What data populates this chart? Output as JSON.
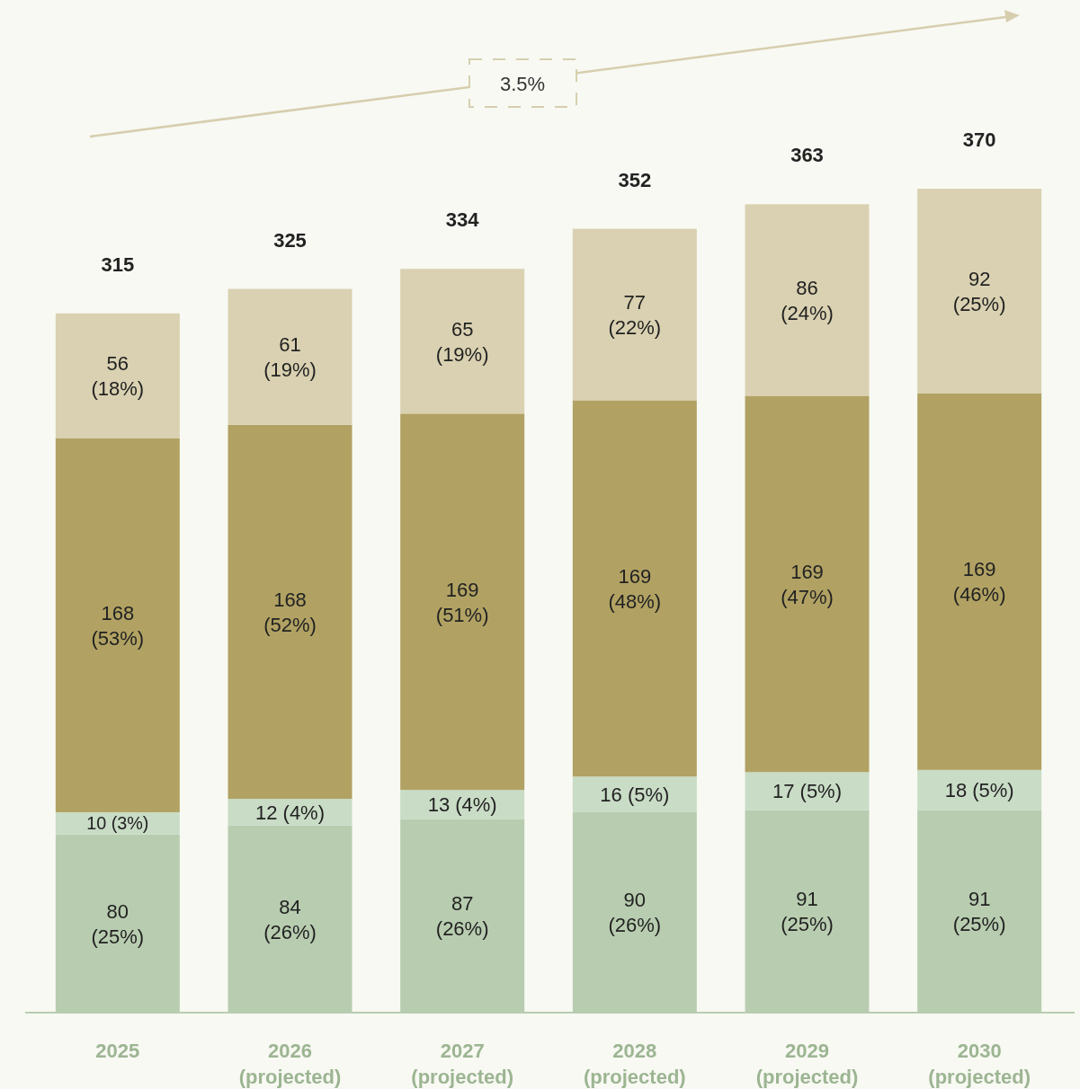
{
  "chart_data": {
    "type": "bar",
    "stacked": true,
    "tick_labels": "x",
    "categories": [
      "2025",
      "2026\n(projected)",
      "2027\n(projected)",
      "2028\n(projected)",
      "2029\n(projected)",
      "2030\n(projected)"
    ],
    "series": [
      {
        "color": "#b8cdb0",
        "values": [
          80,
          84,
          87,
          90,
          91,
          91
        ],
        "value_labels": [
          "80\n(25%)",
          "84\n(26%)",
          "87\n(26%)",
          "90\n(26%)",
          "91\n(25%)",
          "91\n(25%)"
        ]
      },
      {
        "color": "#c9dcc6",
        "values": [
          10,
          12,
          13,
          16,
          17,
          18
        ],
        "value_labels": [
          "10\n(3%)",
          "12\n(4%)",
          "13\n(4%)",
          "16\n(5%)",
          "17\n(5%)",
          "18\n(5%)"
        ]
      },
      {
        "color": "#b1a263",
        "values": [
          168,
          168,
          169,
          169,
          169,
          169
        ],
        "value_labels": [
          "168\n(53%)",
          "168\n(52%)",
          "169\n(51%)",
          "169\n(48%)",
          "169\n(47%)",
          "169\n(46%)"
        ]
      },
      {
        "color": "#d9d1b1",
        "values": [
          56,
          61,
          65,
          77,
          86,
          92
        ],
        "value_labels": [
          "56\n(18%)",
          "61\n(19%)",
          "65\n(19%)",
          "77\n(22%)",
          "86\n(24%)",
          "92\n(25%)"
        ]
      }
    ],
    "totals": [
      "315",
      "325",
      "334",
      "352",
      "363",
      "370"
    ],
    "annotations": [
      "3.5%"
    ]
  }
}
